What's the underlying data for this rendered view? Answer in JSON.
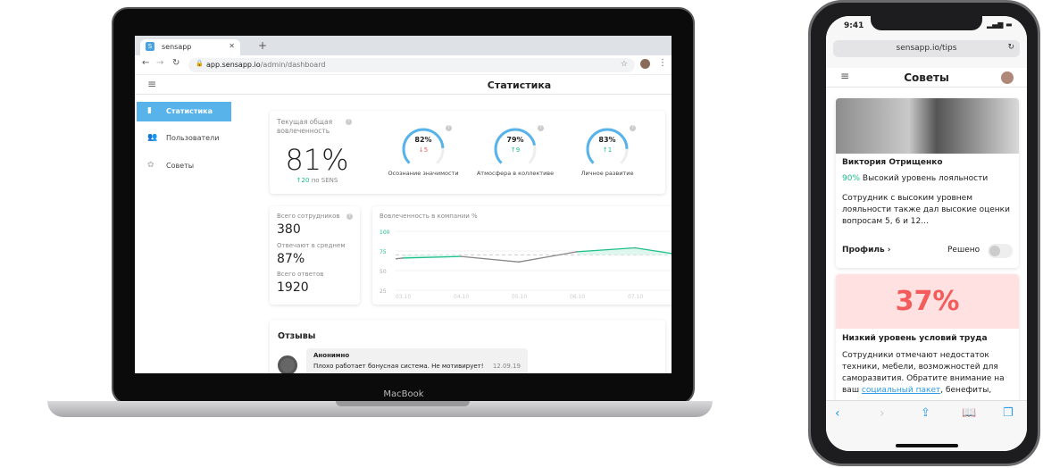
{
  "browser": {
    "tab_title": "sensapp",
    "favicon": "S",
    "url_host": "app.sensapp.io",
    "url_path": "/admin/dashboard"
  },
  "app": {
    "title": "Статистика"
  },
  "sidebar": {
    "items": [
      {
        "label": "Статистика",
        "icon": "bar-chart-icon",
        "active": true
      },
      {
        "label": "Пользователи",
        "icon": "users-icon",
        "active": false
      },
      {
        "label": "Советы",
        "icon": "lotus-icon",
        "active": false
      }
    ]
  },
  "engagement": {
    "label": "Текущая общая вовлеченность",
    "value": "81%",
    "delta": "20",
    "delta_suffix": "по SENS",
    "gauges": [
      {
        "value": "82%",
        "percent": 82,
        "delta": "5",
        "direction": "down",
        "label": "Осознание значимости"
      },
      {
        "value": "79%",
        "percent": 79,
        "delta": "9",
        "direction": "up",
        "label": "Атмосфера в коллективе"
      },
      {
        "value": "83%",
        "percent": 83,
        "delta": "1",
        "direction": "up",
        "label": "Личное развитие"
      }
    ]
  },
  "stats": [
    {
      "label": "Всего сотрудников",
      "value": "380"
    },
    {
      "label": "Отвечают в среднем",
      "value": "87%"
    },
    {
      "label": "Всего ответов",
      "value": "1920"
    }
  ],
  "chart_data": {
    "type": "line",
    "title": "Вовлеченность в компании %",
    "categories": [
      "03.10",
      "04.10",
      "05.10",
      "06.10",
      "07.10"
    ],
    "values": [
      66,
      68,
      61,
      74,
      79
    ],
    "threshold": 70,
    "ylim": [
      25,
      100
    ],
    "yticks": [
      100,
      75,
      50,
      25
    ],
    "colors": {
      "below": "#888888",
      "above": "#1bbf8a"
    }
  },
  "reviews": {
    "title": "Отзывы",
    "items": [
      {
        "author": "Анонимно",
        "text": "Плохо работает бонусная система. Не мотивирует!",
        "date": "12.09.19"
      }
    ]
  },
  "laptop_label": "MacBook",
  "phone": {
    "time": "9:41",
    "url": "sensapp.io/tips",
    "title": "Советы",
    "card1": {
      "name": "Виктория Отрищенко",
      "percent": "90%",
      "level": "Высокий уровень лояльности",
      "text": "Сотрудник с высоким уровнем лояльности также дал высокие оценки вопросам 5, 6 и 12...",
      "profile": "Профиль ›",
      "resolved": "Решено",
      "resolved_on": false
    },
    "card2": {
      "percent": "37%",
      "title": "Низкий уровень условий труда",
      "text_before": "Сотрудники отмечают недостаток техники, мебели, возможностей для саморазвития. Обратите внимание на ваш ",
      "link": "социальный пакет",
      "text_after": ", бенефиты,"
    }
  }
}
